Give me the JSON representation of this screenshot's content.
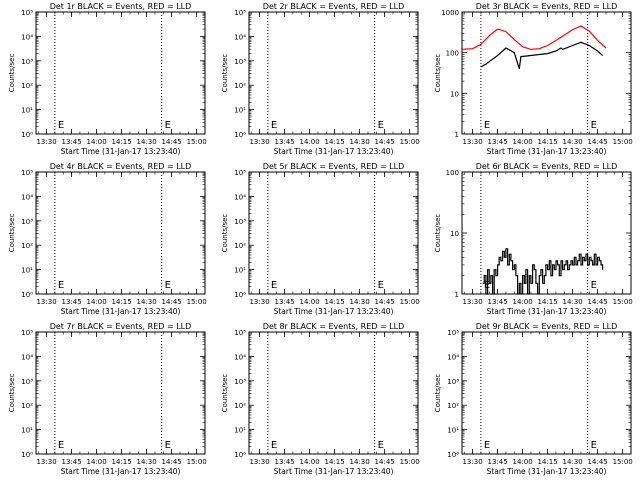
{
  "chart_data": [
    {
      "type": "line",
      "title": "Det 1r BLACK = Events, RED = LLD",
      "xlabel": "Start Time (31-Jan-17 13:23:40)",
      "ylabel": "Counts/sec",
      "yscale": "log",
      "yticks": [
        "10⁰",
        "10¹",
        "10²",
        "10³",
        "10⁴",
        "10⁵"
      ],
      "ylim": [
        1,
        100000
      ],
      "xticks": [
        "13:30",
        "13:45",
        "14:00",
        "14:15",
        "14:30",
        "14:45",
        "15:00"
      ],
      "xlim": [
        "13:23:40",
        "15:05"
      ],
      "markers": [
        "13:35",
        "14:39"
      ],
      "marker_label": "E",
      "series": []
    },
    {
      "type": "line",
      "title": "Det 2r BLACK = Events, RED = LLD",
      "xlabel": "Start Time (31-Jan-17 13:23:40)",
      "ylabel": "Counts/sec",
      "yscale": "log",
      "yticks": [
        "10⁰",
        "10¹",
        "10²",
        "10³",
        "10⁴",
        "10⁵"
      ],
      "ylim": [
        1,
        100000
      ],
      "xticks": [
        "13:30",
        "13:45",
        "14:00",
        "14:15",
        "14:30",
        "14:45",
        "15:00"
      ],
      "xlim": [
        "13:23:40",
        "15:05"
      ],
      "markers": [
        "13:35",
        "14:39"
      ],
      "marker_label": "E",
      "series": []
    },
    {
      "type": "line",
      "title": "Det 3r BLACK = Events, RED = LLD",
      "xlabel": "Start Time (31-Jan-17 13:23:40)",
      "ylabel": "Counts/sec",
      "yscale": "log",
      "yticks": [
        "1",
        "10",
        "100",
        "1000"
      ],
      "ylim": [
        1,
        1000
      ],
      "xticks": [
        "13:30",
        "13:45",
        "14:00",
        "14:15",
        "14:30",
        "14:45",
        "15:00"
      ],
      "xlim": [
        "13:23:40",
        "15:05"
      ],
      "markers": [
        "13:35",
        "14:39"
      ],
      "marker_label": "E",
      "series": [
        {
          "color": "#ff0000",
          "x": [
            "13:23:40",
            "13:30",
            "13:35",
            "13:40",
            "13:45",
            "13:50",
            "13:55",
            "14:00",
            "14:05",
            "14:10",
            "14:15",
            "14:20",
            "14:25",
            "14:30",
            "14:35",
            "14:40",
            "14:45",
            "14:50"
          ],
          "y": [
            120,
            125,
            160,
            260,
            380,
            330,
            210,
            140,
            120,
            125,
            150,
            200,
            270,
            370,
            450,
            340,
            200,
            130
          ]
        },
        {
          "color": "#000000",
          "x": [
            "13:35",
            "13:38",
            "13:40",
            "13:45",
            "13:50",
            "13:55",
            "13:58",
            "13:59",
            "14:05",
            "14:10",
            "14:15",
            "14:20",
            "14:23",
            "14:24",
            "14:30",
            "14:35",
            "14:40",
            "14:45",
            "14:48"
          ],
          "y": [
            45,
            52,
            60,
            85,
            130,
            100,
            40,
            80,
            85,
            90,
            95,
            110,
            130,
            120,
            150,
            180,
            150,
            110,
            85
          ]
        }
      ]
    },
    {
      "type": "line",
      "title": "Det 4r BLACK = Events, RED = LLD",
      "xlabel": "Start Time (31-Jan-17 13:23:40)",
      "ylabel": "Counts/sec",
      "yscale": "log",
      "yticks": [
        "10⁰",
        "10¹",
        "10²",
        "10³",
        "10⁴",
        "10⁵"
      ],
      "ylim": [
        1,
        100000
      ],
      "xticks": [
        "13:30",
        "13:45",
        "14:00",
        "14:15",
        "14:30",
        "14:45",
        "15:00"
      ],
      "xlim": [
        "13:23:40",
        "15:05"
      ],
      "markers": [
        "13:35",
        "14:39"
      ],
      "marker_label": "E",
      "series": []
    },
    {
      "type": "line",
      "title": "Det 5r BLACK = Events, RED = LLD",
      "xlabel": "Start Time (31-Jan-17 13:23:40)",
      "ylabel": "Counts/sec",
      "yscale": "log",
      "yticks": [
        "10⁰",
        "10¹",
        "10²",
        "10³",
        "10⁴",
        "10⁵"
      ],
      "ylim": [
        1,
        100000
      ],
      "xticks": [
        "13:30",
        "13:45",
        "14:00",
        "14:15",
        "14:30",
        "14:45",
        "15:00"
      ],
      "xlim": [
        "13:23:40",
        "15:05"
      ],
      "markers": [
        "13:35",
        "14:39"
      ],
      "marker_label": "E",
      "series": []
    },
    {
      "type": "line",
      "title": "Det 6r BLACK = Events, RED = LLD",
      "xlabel": "Start Time (31-Jan-17 13:23:40)",
      "ylabel": "Counts/sec",
      "yscale": "log",
      "yticks": [
        "1",
        "10",
        "100"
      ],
      "ylim": [
        1,
        100
      ],
      "xticks": [
        "13:30",
        "13:45",
        "14:00",
        "14:15",
        "14:30",
        "14:45",
        "15:00"
      ],
      "xlim": [
        "13:23:40",
        "15:05"
      ],
      "markers": [
        "13:35",
        "14:39"
      ],
      "marker_label": "E",
      "series": [
        {
          "color": "#000000",
          "step": true,
          "x": [
            "13:36",
            "13:37",
            "13:38",
            "13:39",
            "13:40",
            "13:41",
            "13:42",
            "13:43",
            "13:44",
            "13:45",
            "13:46",
            "13:47",
            "13:48",
            "13:49",
            "13:50",
            "13:51",
            "13:52",
            "13:53",
            "13:54",
            "13:55",
            "13:56",
            "13:57",
            "13:58",
            "13:59",
            "14:00",
            "14:01",
            "14:02",
            "14:03",
            "14:04",
            "14:05",
            "14:06",
            "14:07",
            "14:08",
            "14:09",
            "14:10",
            "14:11",
            "14:12",
            "14:13",
            "14:14",
            "14:15",
            "14:16",
            "14:17",
            "14:18",
            "14:19",
            "14:20",
            "14:21",
            "14:22",
            "14:23",
            "14:24",
            "14:25",
            "14:26",
            "14:27",
            "14:28",
            "14:29",
            "14:30",
            "14:31",
            "14:32",
            "14:33",
            "14:34",
            "14:35",
            "14:36",
            "14:37",
            "14:38",
            "14:39",
            "14:40",
            "14:41",
            "14:42",
            "14:43",
            "14:44",
            "14:45",
            "14:46",
            "14:47",
            "14:48"
          ],
          "y": [
            1.5,
            2.0,
            1.0,
            2.5,
            1.5,
            2.0,
            1.0,
            2.5,
            2.0,
            3.0,
            4.0,
            3.5,
            5.0,
            4.0,
            5.5,
            3.0,
            4.5,
            3.5,
            2.5,
            3.0,
            2.0,
            1.0,
            1.5,
            1.0,
            2.0,
            1.5,
            2.5,
            1.0,
            2.0,
            1.5,
            3.0,
            2.5,
            1.5,
            1.0,
            2.0,
            2.5,
            1.5,
            2.0,
            3.0,
            2.5,
            3.5,
            2.0,
            3.0,
            2.5,
            3.5,
            3.0,
            2.0,
            3.5,
            2.5,
            3.0,
            3.5,
            2.5,
            3.0,
            3.5,
            3.0,
            4.0,
            3.0,
            3.5,
            4.5,
            3.0,
            4.0,
            3.5,
            4.5,
            3.0,
            4.0,
            3.5,
            3.0,
            4.5,
            3.0,
            4.0,
            3.5,
            3.0,
            2.5
          ]
        }
      ]
    },
    {
      "type": "line",
      "title": "Det 7r BLACK = Events, RED = LLD",
      "xlabel": "Start Time (31-Jan-17 13:23:40)",
      "ylabel": "Counts/sec",
      "yscale": "log",
      "yticks": [
        "10⁰",
        "10¹",
        "10²",
        "10³",
        "10⁴",
        "10⁵"
      ],
      "ylim": [
        1,
        100000
      ],
      "xticks": [
        "13:30",
        "13:45",
        "14:00",
        "14:15",
        "14:30",
        "14:45",
        "15:00"
      ],
      "xlim": [
        "13:23:40",
        "15:05"
      ],
      "markers": [
        "13:35",
        "14:39"
      ],
      "marker_label": "E",
      "series": []
    },
    {
      "type": "line",
      "title": "Det 8r BLACK = Events, RED = LLD",
      "xlabel": "Start Time (31-Jan-17 13:23:40)",
      "ylabel": "Counts/sec",
      "yscale": "log",
      "yticks": [
        "10⁰",
        "10¹",
        "10²",
        "10³",
        "10⁴",
        "10⁵"
      ],
      "ylim": [
        1,
        100000
      ],
      "xticks": [
        "13:30",
        "13:45",
        "14:00",
        "14:15",
        "14:30",
        "14:45",
        "15:00"
      ],
      "xlim": [
        "13:23:40",
        "15:05"
      ],
      "markers": [
        "13:35",
        "14:39"
      ],
      "marker_label": "E",
      "series": []
    },
    {
      "type": "line",
      "title": "Det 9r BLACK = Events, RED = LLD",
      "xlabel": "Start Time (31-Jan-17 13:23:40)",
      "ylabel": "Counts/sec",
      "yscale": "log",
      "yticks": [
        "10⁰",
        "10¹",
        "10²",
        "10³",
        "10⁴",
        "10⁵"
      ],
      "ylim": [
        1,
        100000
      ],
      "xticks": [
        "13:30",
        "13:45",
        "14:00",
        "14:15",
        "14:30",
        "14:45",
        "15:00"
      ],
      "xlim": [
        "13:23:40",
        "15:05"
      ],
      "markers": [
        "13:35",
        "14:39"
      ],
      "marker_label": "E",
      "series": []
    }
  ]
}
